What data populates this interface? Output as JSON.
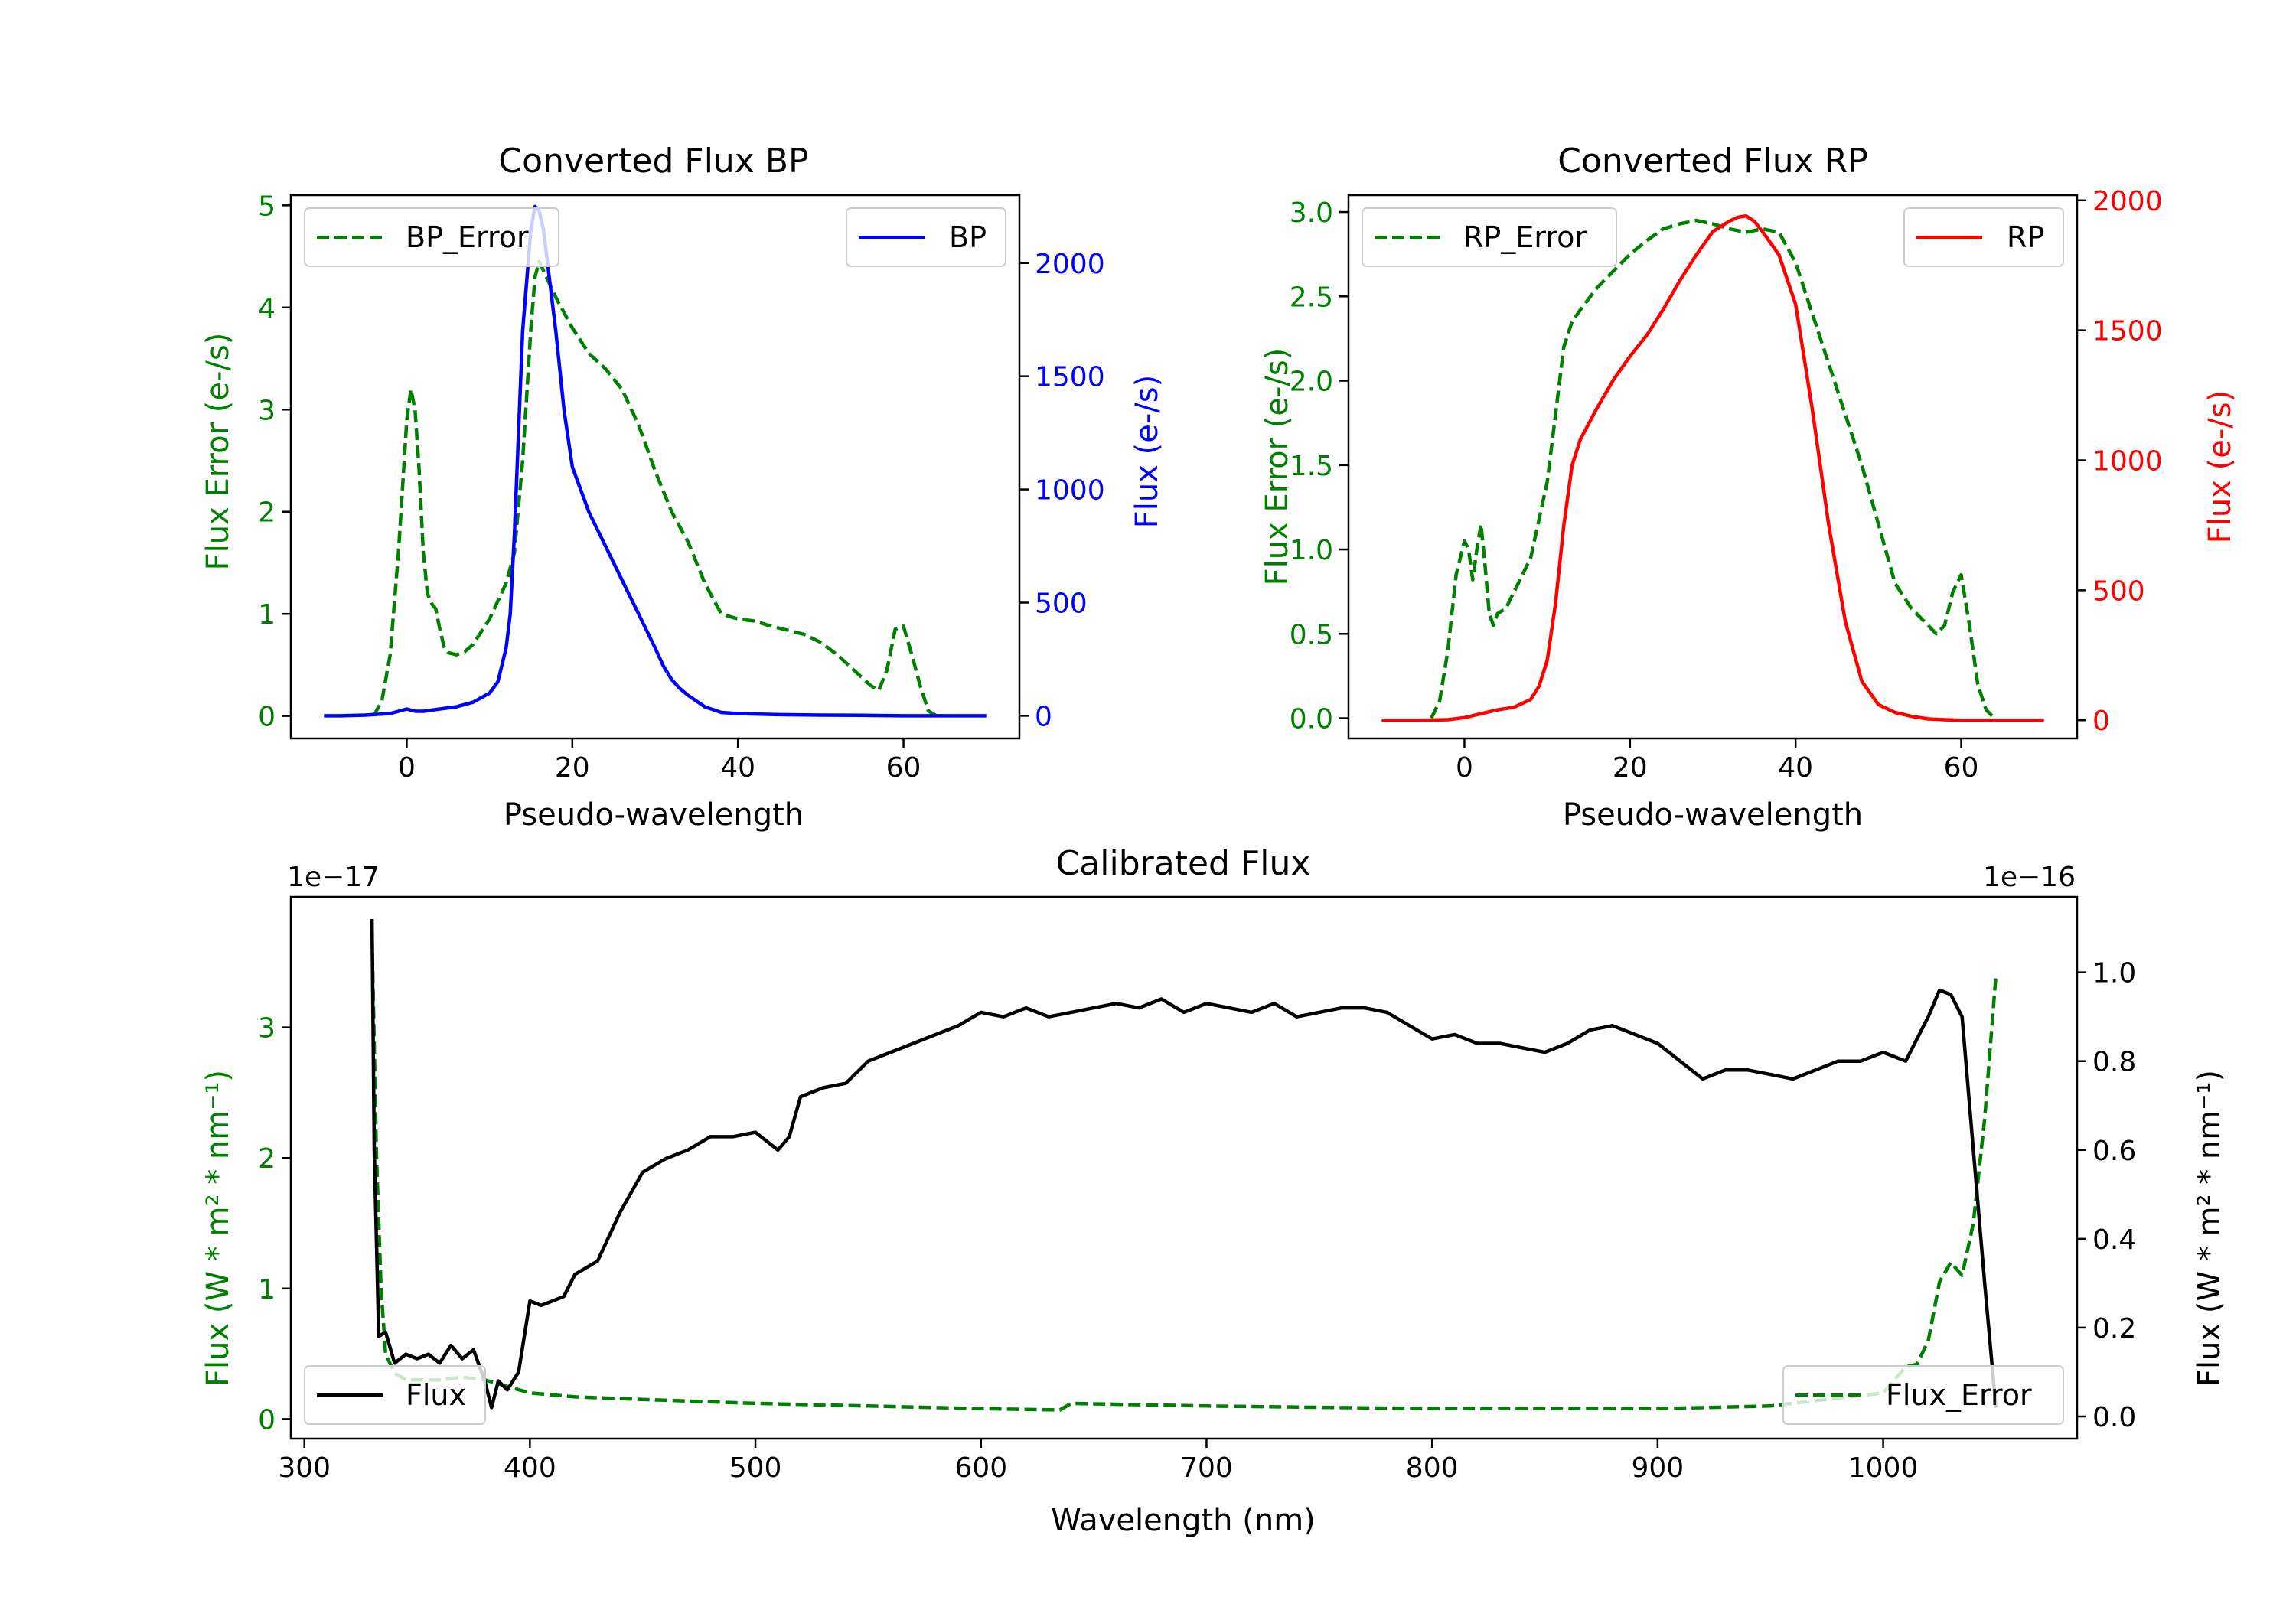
{
  "colors": {
    "error": "#008000",
    "bp": "#0000ff",
    "rp": "#ff0000",
    "flux": "#000000",
    "axis": "#000000"
  },
  "chart_data": [
    {
      "type": "line",
      "title": "Converted Flux BP",
      "xlabel": "Pseudo-wavelength",
      "ylabel_left": "Flux Error (e-/s)",
      "ylabel_right": "Flux (e-/s)",
      "xlim": [
        -14,
        74
      ],
      "ylim_left": [
        -0.22,
        5.1
      ],
      "ylim_right": [
        -100,
        2300
      ],
      "xticks": [
        0,
        20,
        40,
        60
      ],
      "yticks_left": [
        0,
        1,
        2,
        3,
        4,
        5
      ],
      "yticks_right": [
        0,
        500,
        1000,
        1500,
        2000
      ],
      "legend_left": "BP_Error",
      "legend_right": "BP",
      "series": [
        {
          "name": "BP_Error",
          "axis": "left",
          "style": "dashed",
          "x": [
            -4,
            -3,
            -2,
            -1,
            0,
            0.5,
            1,
            1.5,
            2,
            2.5,
            3,
            3.5,
            4,
            4.5,
            5,
            6,
            7,
            8,
            10,
            12,
            13,
            14,
            15,
            15.5,
            16,
            18,
            20,
            22,
            24,
            26,
            28,
            30,
            32,
            34,
            36,
            38,
            40,
            42,
            44,
            46,
            48,
            50,
            52,
            54,
            56,
            57,
            58,
            59,
            60,
            61,
            62,
            63,
            64
          ],
          "y": [
            0,
            0.15,
            0.6,
            1.6,
            2.9,
            3.2,
            3.0,
            2.4,
            1.6,
            1.2,
            1.1,
            1.05,
            0.85,
            0.68,
            0.62,
            0.6,
            0.63,
            0.7,
            0.95,
            1.3,
            1.6,
            2.5,
            3.8,
            4.3,
            4.45,
            4.1,
            3.8,
            3.55,
            3.4,
            3.2,
            2.85,
            2.4,
            2.0,
            1.7,
            1.3,
            1.0,
            0.95,
            0.93,
            0.88,
            0.84,
            0.8,
            0.72,
            0.6,
            0.45,
            0.3,
            0.25,
            0.45,
            0.85,
            0.88,
            0.6,
            0.3,
            0.05,
            0
          ]
        },
        {
          "name": "BP",
          "axis": "right",
          "style": "solid",
          "x": [
            -10,
            -8,
            -5,
            -2,
            -1,
            0,
            1,
            2,
            4,
            6,
            8,
            10,
            11,
            12,
            12.5,
            13,
            14,
            15,
            15.5,
            16,
            16.5,
            17,
            18,
            19,
            20,
            22,
            24,
            26,
            28,
            30,
            31,
            32,
            33,
            34,
            36,
            38,
            40,
            45,
            50,
            55,
            60,
            65,
            70
          ],
          "y": [
            0,
            0,
            3,
            10,
            20,
            30,
            20,
            20,
            30,
            40,
            60,
            100,
            150,
            300,
            450,
            800,
            1700,
            2150,
            2250,
            2230,
            2150,
            2000,
            1700,
            1350,
            1100,
            900,
            750,
            600,
            450,
            300,
            220,
            160,
            120,
            90,
            40,
            15,
            10,
            5,
            3,
            2,
            0,
            0,
            0
          ]
        }
      ]
    },
    {
      "type": "line",
      "title": "Converted Flux RP",
      "xlabel": "Pseudo-wavelength",
      "ylabel_left": "Flux Error (e-/s)",
      "ylabel_right": "Flux (e-/s)",
      "xlim": [
        -14,
        74
      ],
      "ylim_left": [
        -0.12,
        3.1
      ],
      "ylim_right": [
        -70,
        2020
      ],
      "xticks": [
        0,
        20,
        40,
        60
      ],
      "yticks_left": [
        0.0,
        0.5,
        1.0,
        1.5,
        2.0,
        2.5,
        3.0
      ],
      "yticks_right": [
        0,
        500,
        1000,
        1500,
        2000
      ],
      "legend_left": "RP_Error",
      "legend_right": "RP",
      "series": [
        {
          "name": "RP_Error",
          "axis": "left",
          "style": "dashed",
          "x": [
            -4,
            -3,
            -2,
            -1,
            0,
            0.5,
            1,
            1.5,
            2,
            2.5,
            3,
            3.5,
            4,
            5,
            6,
            8,
            10,
            11,
            12,
            13,
            14,
            16,
            18,
            20,
            22,
            24,
            26,
            28,
            30,
            32,
            34,
            36,
            38,
            40,
            42,
            44,
            46,
            48,
            50,
            52,
            54,
            55,
            56,
            57,
            58,
            59,
            60,
            61,
            62,
            63,
            64
          ],
          "y": [
            0,
            0.1,
            0.4,
            0.85,
            1.05,
            1.0,
            0.82,
            1.0,
            1.15,
            0.9,
            0.62,
            0.55,
            0.62,
            0.65,
            0.75,
            0.95,
            1.4,
            1.8,
            2.2,
            2.35,
            2.42,
            2.55,
            2.65,
            2.75,
            2.83,
            2.9,
            2.93,
            2.95,
            2.93,
            2.9,
            2.88,
            2.9,
            2.88,
            2.7,
            2.4,
            2.1,
            1.8,
            1.5,
            1.15,
            0.8,
            0.65,
            0.6,
            0.55,
            0.5,
            0.55,
            0.75,
            0.85,
            0.55,
            0.2,
            0.05,
            0
          ]
        },
        {
          "name": "RP",
          "axis": "right",
          "style": "solid",
          "x": [
            -10,
            -5,
            -2,
            0,
            2,
            4,
            6,
            8,
            9,
            10,
            11,
            12,
            13,
            14,
            16,
            18,
            20,
            22,
            24,
            26,
            28,
            30,
            32,
            33,
            34,
            35,
            36,
            38,
            40,
            42,
            44,
            46,
            48,
            50,
            52,
            54,
            56,
            58,
            60,
            62,
            65,
            70
          ],
          "y": [
            0,
            0,
            2,
            10,
            25,
            40,
            50,
            80,
            130,
            230,
            450,
            750,
            980,
            1080,
            1200,
            1310,
            1400,
            1480,
            1580,
            1690,
            1790,
            1880,
            1920,
            1935,
            1940,
            1920,
            1880,
            1790,
            1600,
            1200,
            750,
            380,
            150,
            60,
            30,
            15,
            5,
            2,
            0,
            0,
            0,
            0
          ]
        }
      ]
    },
    {
      "type": "line",
      "title": "Calibrated Flux",
      "xlabel": "Wavelength (nm)",
      "ylabel_left": "Flux (W * m² * nm⁻¹)",
      "ylabel_right": "Flux (W * m² * nm⁻¹)",
      "offset_left": "1e−17",
      "offset_right": "1e−16",
      "xlim": [
        294,
        1086
      ],
      "ylim_left": [
        -0.15,
        4.0
      ],
      "ylim_right": [
        -0.05,
        1.17
      ],
      "xticks": [
        300,
        400,
        500,
        600,
        700,
        800,
        900,
        1000
      ],
      "yticks_left": [
        0,
        1,
        2,
        3
      ],
      "yticks_right": [
        0.0,
        0.2,
        0.4,
        0.6,
        0.8,
        1.0
      ],
      "legend_left": "Flux",
      "legend_right": "Flux_Error",
      "series": [
        {
          "name": "Flux_Error",
          "axis": "left",
          "style": "dashed",
          "x": [
            330,
            332,
            334,
            336,
            340,
            345,
            350,
            360,
            370,
            380,
            390,
            400,
            420,
            450,
            500,
            550,
            600,
            635,
            640,
            700,
            800,
            900,
            950,
            1000,
            1010,
            1015,
            1020,
            1025,
            1030,
            1035,
            1040,
            1045,
            1050
          ],
          "y": [
            3.7,
            2.0,
            1.0,
            0.5,
            0.35,
            0.3,
            0.3,
            0.3,
            0.32,
            0.3,
            0.25,
            0.2,
            0.17,
            0.15,
            0.12,
            0.1,
            0.08,
            0.07,
            0.12,
            0.1,
            0.08,
            0.08,
            0.1,
            0.2,
            0.4,
            0.42,
            0.6,
            1.05,
            1.2,
            1.1,
            1.5,
            2.3,
            3.4
          ]
        },
        {
          "name": "Flux",
          "axis": "right",
          "style": "solid",
          "x": [
            330,
            331,
            333,
            336,
            340,
            345,
            350,
            355,
            360,
            365,
            370,
            375,
            380,
            383,
            386,
            390,
            395,
            400,
            405,
            410,
            415,
            420,
            430,
            440,
            450,
            460,
            470,
            480,
            490,
            500,
            510,
            515,
            520,
            530,
            540,
            550,
            560,
            570,
            580,
            590,
            600,
            610,
            620,
            630,
            640,
            650,
            660,
            670,
            680,
            690,
            700,
            710,
            720,
            730,
            740,
            750,
            760,
            770,
            780,
            790,
            800,
            810,
            820,
            830,
            840,
            850,
            860,
            870,
            880,
            890,
            900,
            910,
            920,
            930,
            940,
            950,
            960,
            970,
            980,
            990,
            1000,
            1010,
            1020,
            1025,
            1030,
            1035,
            1040,
            1045,
            1050
          ],
          "y": [
            1.12,
            0.6,
            0.18,
            0.19,
            0.12,
            0.14,
            0.13,
            0.14,
            0.12,
            0.16,
            0.13,
            0.15,
            0.08,
            0.02,
            0.08,
            0.06,
            0.1,
            0.26,
            0.25,
            0.26,
            0.27,
            0.32,
            0.35,
            0.46,
            0.55,
            0.58,
            0.6,
            0.63,
            0.63,
            0.64,
            0.6,
            0.63,
            0.72,
            0.74,
            0.75,
            0.8,
            0.82,
            0.84,
            0.86,
            0.88,
            0.91,
            0.9,
            0.92,
            0.9,
            0.91,
            0.92,
            0.93,
            0.92,
            0.94,
            0.91,
            0.93,
            0.92,
            0.91,
            0.93,
            0.9,
            0.91,
            0.92,
            0.92,
            0.91,
            0.88,
            0.85,
            0.86,
            0.84,
            0.84,
            0.83,
            0.82,
            0.84,
            0.87,
            0.88,
            0.86,
            0.84,
            0.8,
            0.76,
            0.78,
            0.78,
            0.77,
            0.76,
            0.78,
            0.8,
            0.8,
            0.82,
            0.8,
            0.9,
            0.96,
            0.95,
            0.9,
            0.6,
            0.3,
            0.02
          ]
        }
      ]
    }
  ]
}
